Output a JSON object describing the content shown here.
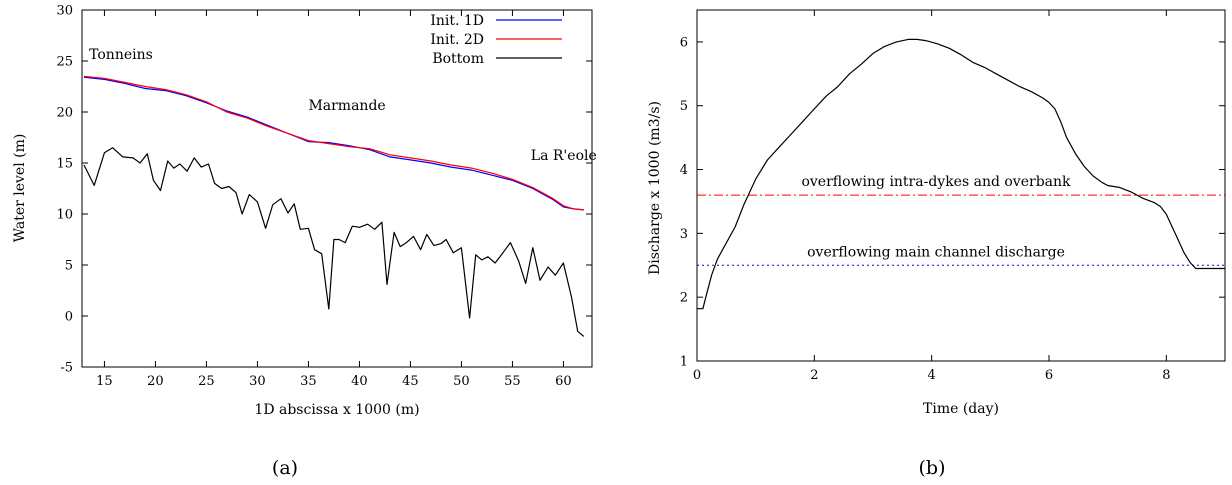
{
  "chart_data": [
    {
      "type": "line",
      "caption": "(a)",
      "xlabel": "1D abscissa x 1000 (m)",
      "ylabel": "Water level (m)",
      "xlim": [
        12.8,
        62.8
      ],
      "ylim": [
        -5,
        30
      ],
      "xticks": [
        15,
        20,
        25,
        30,
        35,
        40,
        45,
        50,
        55,
        60
      ],
      "yticks": [
        -5,
        0,
        5,
        10,
        15,
        20,
        25,
        30
      ],
      "legend": "top-right",
      "annotations": [
        {
          "text": "Tonneins",
          "x": 13.5,
          "y": 25.2
        },
        {
          "text": "Marmande",
          "x": 35.0,
          "y": 20.2
        },
        {
          "text": "La R'eole",
          "x": 56.8,
          "y": 15.3
        }
      ],
      "series": [
        {
          "name": "Init. 1D",
          "color": "#0000ff",
          "x": [
            13,
            15,
            17,
            19,
            21,
            23,
            25,
            27,
            29,
            31,
            33,
            35,
            37,
            39,
            41,
            43,
            45,
            47,
            49,
            51,
            53,
            55,
            57,
            59,
            60,
            61,
            62
          ],
          "y": [
            23.4,
            23.2,
            22.8,
            22.3,
            22.1,
            21.6,
            20.9,
            20.1,
            19.5,
            18.7,
            17.9,
            17.1,
            17.0,
            16.7,
            16.3,
            15.6,
            15.3,
            15.0,
            14.6,
            14.3,
            13.8,
            13.3,
            12.5,
            11.4,
            10.7,
            10.5,
            10.4
          ]
        },
        {
          "name": "Init. 2D",
          "color": "#ff0000",
          "x": [
            13,
            15,
            17,
            19,
            21,
            23,
            25,
            27,
            29,
            31,
            33,
            35,
            37,
            39,
            41,
            43,
            45,
            47,
            49,
            51,
            53,
            55,
            57,
            59,
            60,
            61,
            62
          ],
          "y": [
            23.5,
            23.3,
            22.9,
            22.5,
            22.2,
            21.7,
            21.0,
            20.0,
            19.4,
            18.6,
            17.9,
            17.2,
            16.9,
            16.6,
            16.4,
            15.8,
            15.5,
            15.2,
            14.8,
            14.5,
            14.0,
            13.4,
            12.6,
            11.5,
            10.8,
            10.5,
            10.4
          ]
        },
        {
          "name": "Bottom",
          "color": "#000000",
          "x": [
            13,
            14,
            15,
            15.8,
            16.8,
            17.8,
            18.5,
            19.2,
            19.8,
            20.5,
            21.2,
            21.8,
            22.4,
            23.1,
            23.8,
            24.5,
            25.2,
            25.8,
            26.5,
            27.2,
            27.9,
            28.5,
            29.2,
            30,
            30.8,
            31.5,
            32.3,
            33,
            33.6,
            34.2,
            35,
            35.6,
            36.3,
            37,
            37.5,
            38,
            38.6,
            39.3,
            40,
            40.8,
            41.5,
            42.2,
            42.7,
            43.4,
            44,
            44.6,
            45.3,
            46,
            46.6,
            47.3,
            48,
            48.5,
            49.2,
            50,
            50.8,
            51.4,
            52,
            52.6,
            53.3,
            54,
            54.8,
            55.6,
            56.3,
            57,
            57.7,
            58.5,
            59.2,
            60,
            60.8,
            61.4,
            62
          ],
          "y": [
            14.8,
            12.8,
            16.0,
            16.5,
            15.6,
            15.5,
            15.0,
            15.9,
            13.3,
            12.3,
            15.2,
            14.5,
            14.9,
            14.2,
            15.5,
            14.6,
            14.9,
            13.0,
            12.5,
            12.7,
            12.1,
            10.0,
            11.9,
            11.2,
            8.6,
            10.9,
            11.5,
            10.1,
            11.0,
            8.5,
            8.6,
            6.5,
            6.1,
            0.7,
            7.5,
            7.5,
            7.2,
            8.8,
            8.7,
            9.0,
            8.5,
            9.2,
            3.1,
            8.2,
            6.8,
            7.2,
            7.8,
            6.5,
            8.0,
            6.9,
            7.1,
            7.5,
            6.2,
            6.7,
            -0.2,
            6.0,
            5.5,
            5.8,
            5.2,
            6.1,
            7.2,
            5.4,
            3.2,
            6.7,
            3.5,
            4.8,
            4.0,
            5.2,
            1.8,
            -1.5,
            -2.0
          ]
        }
      ]
    },
    {
      "type": "line",
      "caption": "(b)",
      "xlabel": "Time (day)",
      "ylabel": "Discharge x 1000 (m3/s)",
      "xlim": [
        0,
        9
      ],
      "ylim": [
        1,
        6.5
      ],
      "xticks": [
        0,
        2,
        4,
        6,
        8
      ],
      "yticks": [
        1,
        2,
        3,
        4,
        5,
        6
      ],
      "series": [
        {
          "name": "",
          "color": "#000000",
          "x": [
            0.0,
            0.1,
            0.15,
            0.25,
            0.35,
            0.5,
            0.65,
            0.8,
            0.9,
            1.0,
            1.2,
            1.4,
            1.6,
            1.8,
            2.0,
            2.2,
            2.4,
            2.6,
            2.8,
            3.0,
            3.2,
            3.4,
            3.6,
            3.75,
            3.9,
            4.1,
            4.3,
            4.5,
            4.7,
            4.9,
            5.1,
            5.3,
            5.5,
            5.7,
            5.9,
            6.0,
            6.1,
            6.2,
            6.3,
            6.45,
            6.6,
            6.75,
            6.9,
            7.0,
            7.2,
            7.4,
            7.6,
            7.8,
            7.9,
            8.0,
            8.1,
            8.2,
            8.3,
            8.4,
            8.5,
            8.7,
            9.0
          ],
          "y": [
            1.82,
            1.82,
            2.0,
            2.35,
            2.6,
            2.85,
            3.1,
            3.45,
            3.65,
            3.85,
            4.15,
            4.35,
            4.55,
            4.75,
            4.95,
            5.15,
            5.3,
            5.5,
            5.65,
            5.82,
            5.93,
            6.0,
            6.04,
            6.04,
            6.02,
            5.97,
            5.9,
            5.8,
            5.68,
            5.6,
            5.5,
            5.4,
            5.3,
            5.22,
            5.12,
            5.05,
            4.95,
            4.75,
            4.5,
            4.25,
            4.05,
            3.9,
            3.8,
            3.75,
            3.72,
            3.65,
            3.55,
            3.48,
            3.42,
            3.3,
            3.1,
            2.9,
            2.7,
            2.55,
            2.45,
            2.45,
            2.45
          ]
        }
      ],
      "reference_lines": [
        {
          "label": "overflowing intra-dykes and overbank",
          "y": 3.6,
          "color": "#ff0000",
          "style": "dash-dot"
        },
        {
          "label": "overflowing main channel discharge",
          "y": 2.5,
          "color": "#0000ff",
          "style": "dotted"
        }
      ]
    }
  ]
}
